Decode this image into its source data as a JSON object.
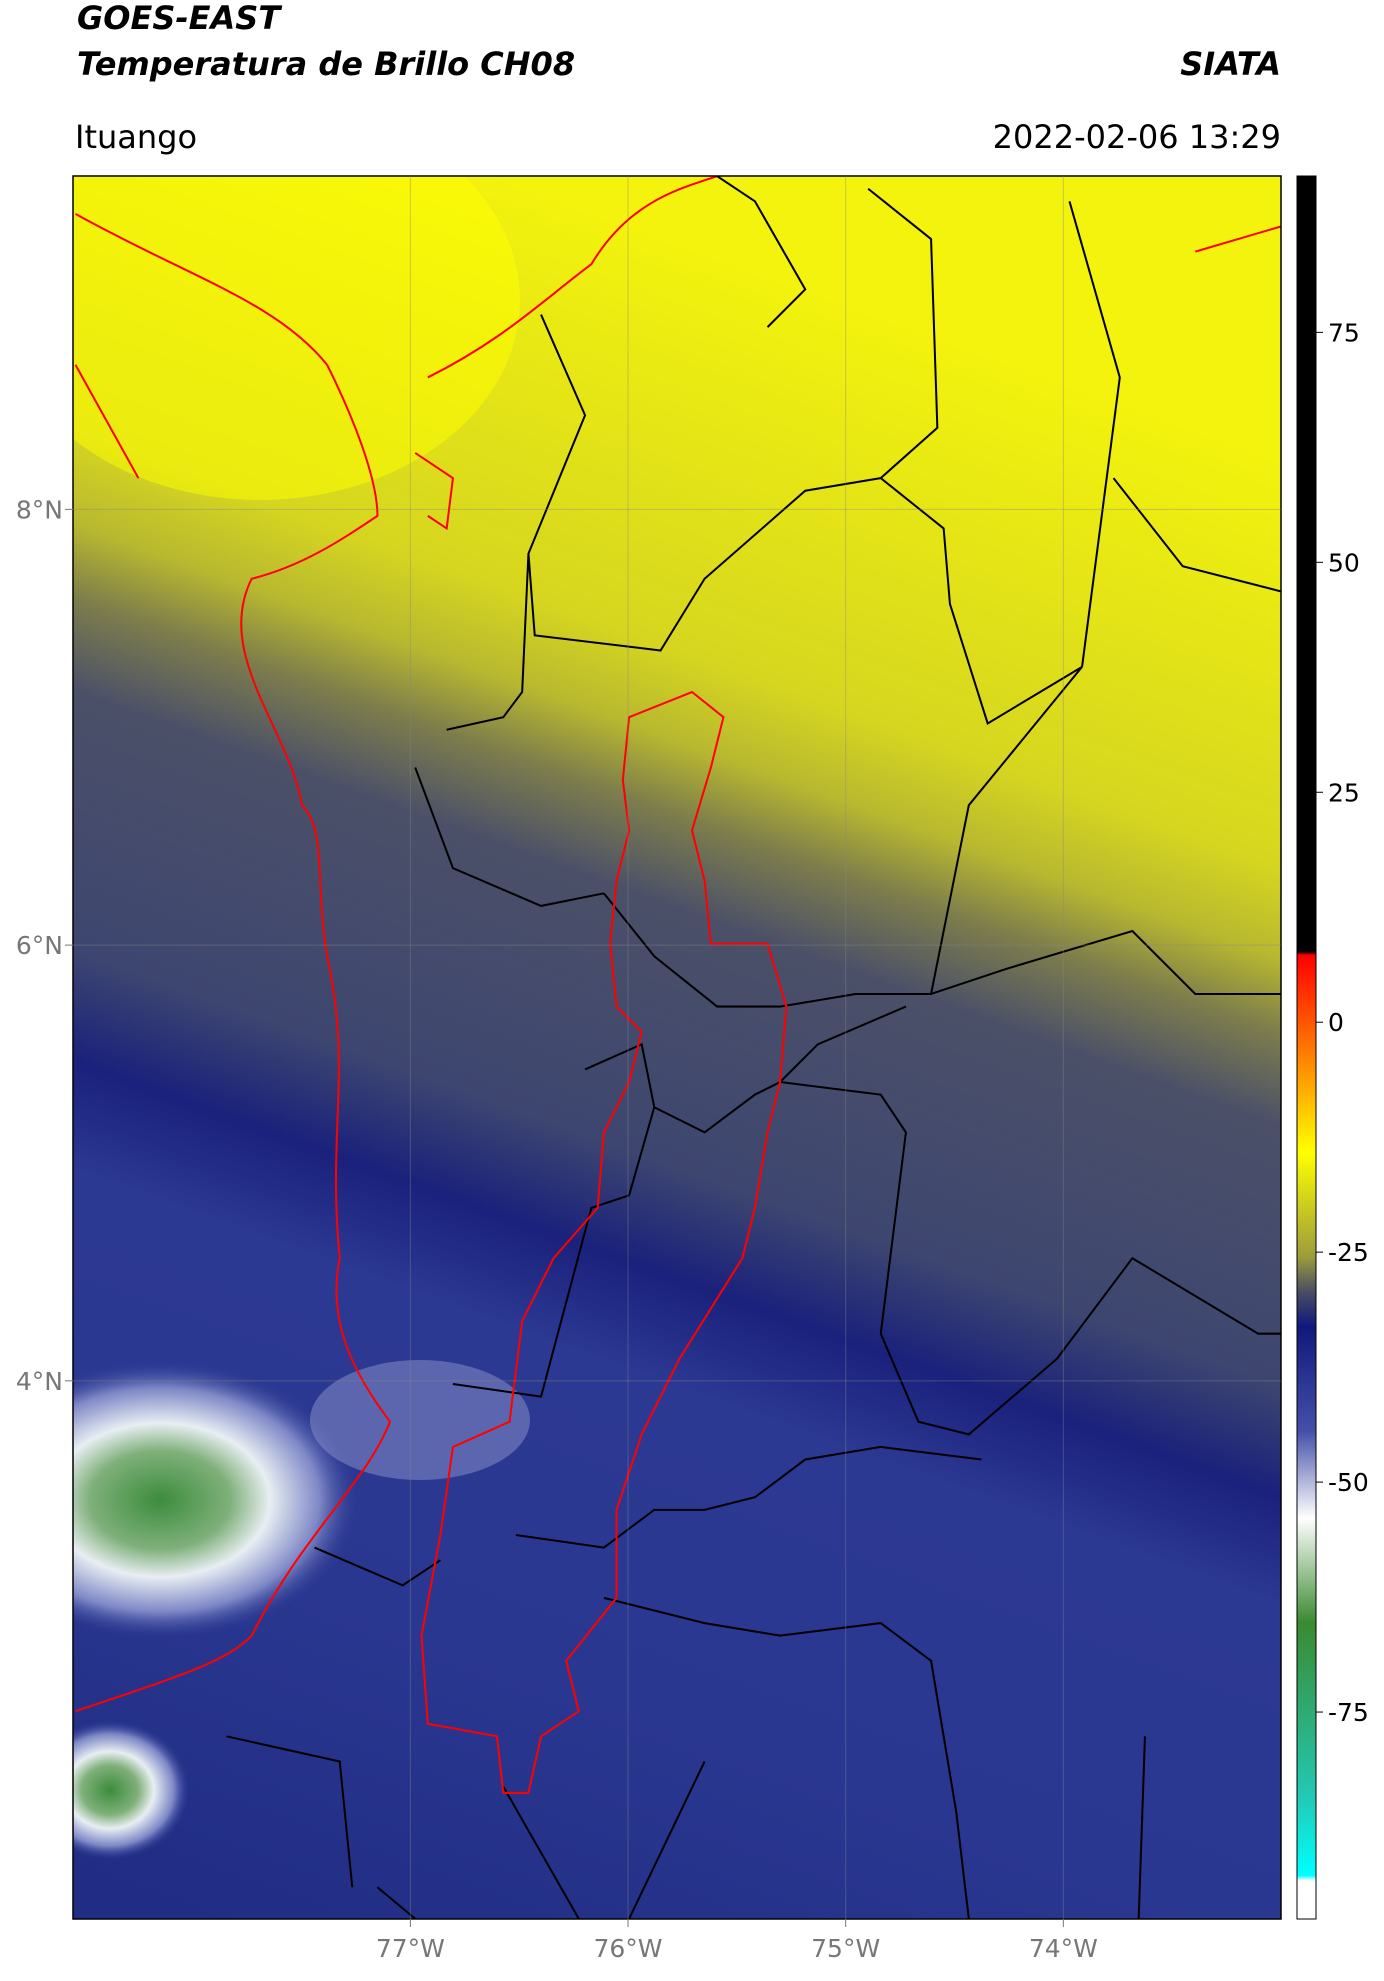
{
  "chart_data": {
    "type": "map",
    "title": "GOES-EAST",
    "subtitle": "Temperatura de Brillo CH08",
    "source": "SIATA",
    "location": "Ituango",
    "timestamp": "2022-02-06 13:29",
    "xlim": [
      -78.55,
      -73.0
    ],
    "ylim": [
      1.53,
      9.53
    ],
    "xticks": [
      {
        "value": -77,
        "label": "77°W"
      },
      {
        "value": -76,
        "label": "76°W"
      },
      {
        "value": -75,
        "label": "75°W"
      },
      {
        "value": -74,
        "label": "74°W"
      }
    ],
    "yticks": [
      {
        "value": 8,
        "label": "8°N"
      },
      {
        "value": 6,
        "label": "6°N"
      },
      {
        "value": 4,
        "label": "4°N"
      }
    ],
    "colorbar_lim": [
      -97.5,
      92
    ],
    "colorbar_ticks": [
      75,
      50,
      25,
      0,
      -25,
      -50,
      -75
    ],
    "grid": true
  }
}
